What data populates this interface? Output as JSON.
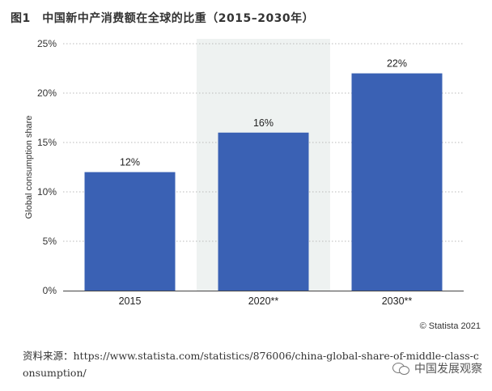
{
  "figure": {
    "title": "图1　中国新中产消费额在全球的比重（2015–2030年）",
    "credit": "Statista 2021",
    "credit_icon": "copyright-icon",
    "source": "资料来源：https://www.statista.com/statistics/876006/china-global-share-of-middle-class-consumption/",
    "watermark": "中国发展观察",
    "watermark_icon": "wechat-icon"
  },
  "chart_data": {
    "type": "bar",
    "categories": [
      "2015",
      "2020**",
      "2030**"
    ],
    "values": [
      12,
      16,
      22
    ],
    "value_labels": [
      "12%",
      "16%",
      "22%"
    ],
    "ylabel": "Global consumption share",
    "ylim": [
      0,
      25
    ],
    "yticks": [
      0,
      5,
      10,
      15,
      20,
      25
    ],
    "ytick_labels": [
      "0%",
      "5%",
      "10%",
      "15%",
      "20%",
      "25%"
    ],
    "grid": "horizontal dotted",
    "highlighted_category": "2020**",
    "bar_color": "#3a61b4",
    "highlight_color": "#eef2f1"
  }
}
